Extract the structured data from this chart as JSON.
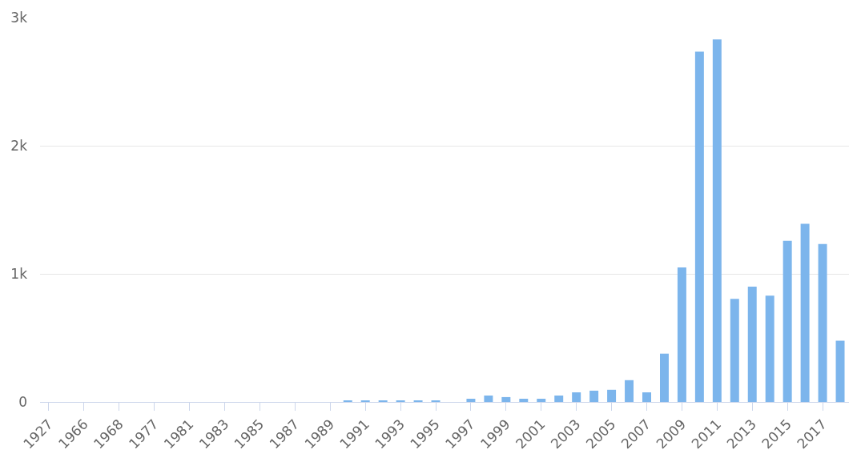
{
  "chart_data": {
    "type": "bar",
    "categories": [
      "1927",
      null,
      "1966",
      null,
      "1968",
      null,
      "1977",
      null,
      "1981",
      null,
      "1983",
      null,
      "1985",
      null,
      "1987",
      null,
      "1989",
      null,
      "1991",
      null,
      "1993",
      null,
      "1995",
      null,
      "1997",
      null,
      "1999",
      null,
      "2001",
      null,
      "2003",
      null,
      "2005",
      null,
      "2007",
      null,
      "2009",
      null,
      "2011",
      null,
      "2013",
      null,
      "2015",
      null,
      "2017",
      null
    ],
    "values": [
      0,
      0,
      0,
      0,
      0,
      0,
      0,
      0,
      0,
      0,
      0,
      0,
      0,
      0,
      0,
      0,
      0,
      10,
      10,
      10,
      10,
      10,
      10,
      0,
      25,
      50,
      38,
      25,
      25,
      50,
      75,
      88,
      95,
      170,
      75,
      377,
      1050,
      2735,
      2830,
      805,
      900,
      830,
      1258,
      1390,
      1233,
      478
    ],
    "color": "#7cb5ec",
    "ylim": [
      0,
      3000
    ],
    "yticks": [
      0,
      {
        "value": 1000,
        "label": "1k"
      },
      {
        "value": 2000,
        "label": "2k"
      },
      {
        "value": 3000,
        "label": "3k"
      }
    ],
    "grid": "y"
  }
}
